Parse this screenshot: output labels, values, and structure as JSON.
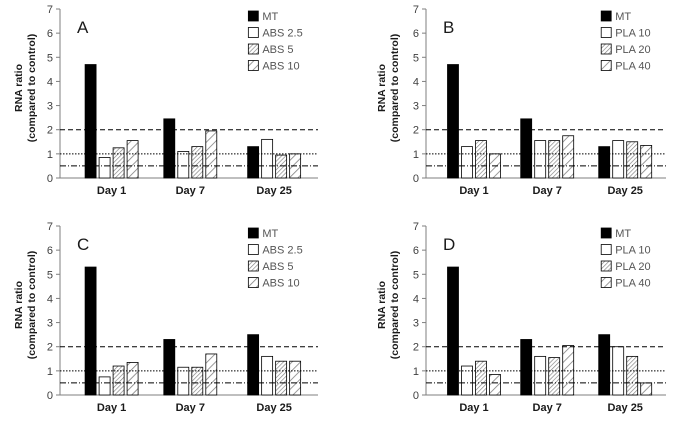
{
  "styles": {
    "MT": "solid",
    "ABS 2.5": "empty",
    "ABS 5": "dense",
    "ABS 10": "sparse",
    "PLA 10": "empty",
    "PLA 20": "dense",
    "PLA 40": "sparse"
  },
  "chart_data": [
    {
      "type": "bar",
      "panel": "A",
      "ylabel": [
        "RNA ratio",
        "(compared  to control)"
      ],
      "ylim": [
        0,
        7
      ],
      "yticks": [
        0,
        1,
        2,
        3,
        4,
        5,
        6,
        7
      ],
      "categories": [
        "Day 1",
        "Day 7",
        "Day 25"
      ],
      "series": [
        {
          "name": "MT",
          "values": [
            4.7,
            2.45,
            1.3
          ]
        },
        {
          "name": "ABS 2.5",
          "values": [
            0.85,
            1.1,
            1.6
          ]
        },
        {
          "name": "ABS 5",
          "values": [
            1.25,
            1.3,
            0.95
          ]
        },
        {
          "name": "ABS 10",
          "values": [
            1.55,
            1.95,
            1.0
          ]
        }
      ],
      "reference_lines": [
        0.5,
        1,
        2
      ]
    },
    {
      "type": "bar",
      "panel": "B",
      "ylabel": [
        "RNA ratio",
        "(compared  to control)"
      ],
      "ylim": [
        0,
        7
      ],
      "yticks": [
        0,
        1,
        2,
        3,
        4,
        5,
        6,
        7
      ],
      "categories": [
        "Day 1",
        "Day 7",
        "Day 25"
      ],
      "series": [
        {
          "name": "MT",
          "values": [
            4.7,
            2.45,
            1.3
          ]
        },
        {
          "name": "PLA 10",
          "values": [
            1.3,
            1.55,
            1.55
          ]
        },
        {
          "name": "PLA 20",
          "values": [
            1.55,
            1.55,
            1.5
          ]
        },
        {
          "name": "PLA 40",
          "values": [
            1.0,
            1.75,
            1.35
          ]
        }
      ],
      "reference_lines": [
        0.5,
        1,
        2
      ]
    },
    {
      "type": "bar",
      "panel": "C",
      "ylabel": [
        "RNA ratio",
        "(compared  to control)"
      ],
      "ylim": [
        0,
        7
      ],
      "yticks": [
        0,
        1,
        2,
        3,
        4,
        5,
        6,
        7
      ],
      "categories": [
        "Day 1",
        "Day 7",
        "Day 25"
      ],
      "series": [
        {
          "name": "MT",
          "values": [
            5.3,
            2.3,
            2.5
          ]
        },
        {
          "name": "ABS 2.5",
          "values": [
            0.75,
            1.15,
            1.6
          ]
        },
        {
          "name": "ABS 5",
          "values": [
            1.2,
            1.15,
            1.4
          ]
        },
        {
          "name": "ABS 10",
          "values": [
            1.35,
            1.7,
            1.4
          ]
        }
      ],
      "reference_lines": [
        0.5,
        1,
        2
      ]
    },
    {
      "type": "bar",
      "panel": "D",
      "ylabel": [
        "RNA ratio",
        "(compared  to control)"
      ],
      "ylim": [
        0,
        7
      ],
      "yticks": [
        0,
        1,
        2,
        3,
        4,
        5,
        6,
        7
      ],
      "categories": [
        "Day 1",
        "Day 7",
        "Day 25"
      ],
      "series": [
        {
          "name": "MT",
          "values": [
            5.3,
            2.3,
            2.5
          ]
        },
        {
          "name": "PLA 10",
          "values": [
            1.2,
            1.6,
            2.0
          ]
        },
        {
          "name": "PLA 20",
          "values": [
            1.4,
            1.55,
            1.6
          ]
        },
        {
          "name": "PLA 40",
          "values": [
            0.85,
            2.05,
            0.5
          ]
        }
      ],
      "reference_lines": [
        0.5,
        1,
        2
      ]
    }
  ]
}
